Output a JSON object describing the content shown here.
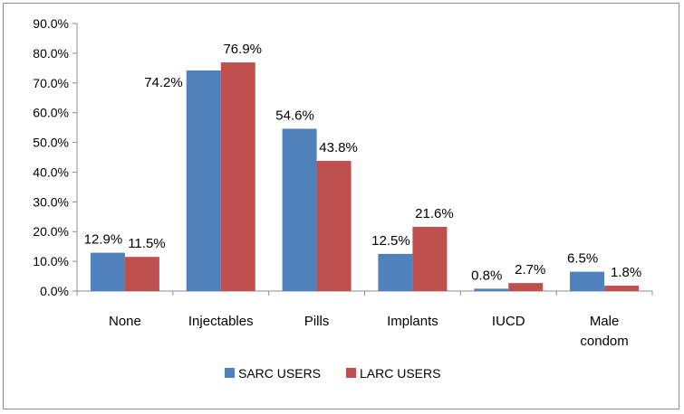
{
  "chart_data": {
    "type": "bar",
    "title": "",
    "xlabel": "",
    "ylabel": "",
    "ylim": [
      0,
      90
    ],
    "yticks": [
      "0.0%",
      "10.0%",
      "20.0%",
      "30.0%",
      "40.0%",
      "50.0%",
      "60.0%",
      "70.0%",
      "80.0%",
      "90.0%"
    ],
    "categories": [
      [
        "None"
      ],
      [
        "Injectables"
      ],
      [
        "Pills"
      ],
      [
        "Implants"
      ],
      [
        "IUCD"
      ],
      [
        "Male",
        "condom"
      ]
    ],
    "series": [
      {
        "name": "SARC USERS",
        "color": "#4f81bd",
        "values": [
          12.9,
          74.2,
          54.6,
          12.5,
          0.8,
          6.5
        ],
        "labels": [
          "12.9%",
          "74.2%",
          "54.6%",
          "12.5%",
          "0.8%",
          "6.5%"
        ]
      },
      {
        "name": "LARC USERS",
        "color": "#c0504d",
        "values": [
          11.5,
          76.9,
          43.8,
          21.6,
          2.7,
          1.8
        ],
        "labels": [
          "11.5%",
          "76.9%",
          "43.8%",
          "21.6%",
          "2.7%",
          "1.8%"
        ]
      }
    ],
    "grid": false,
    "legend": "bottom"
  }
}
